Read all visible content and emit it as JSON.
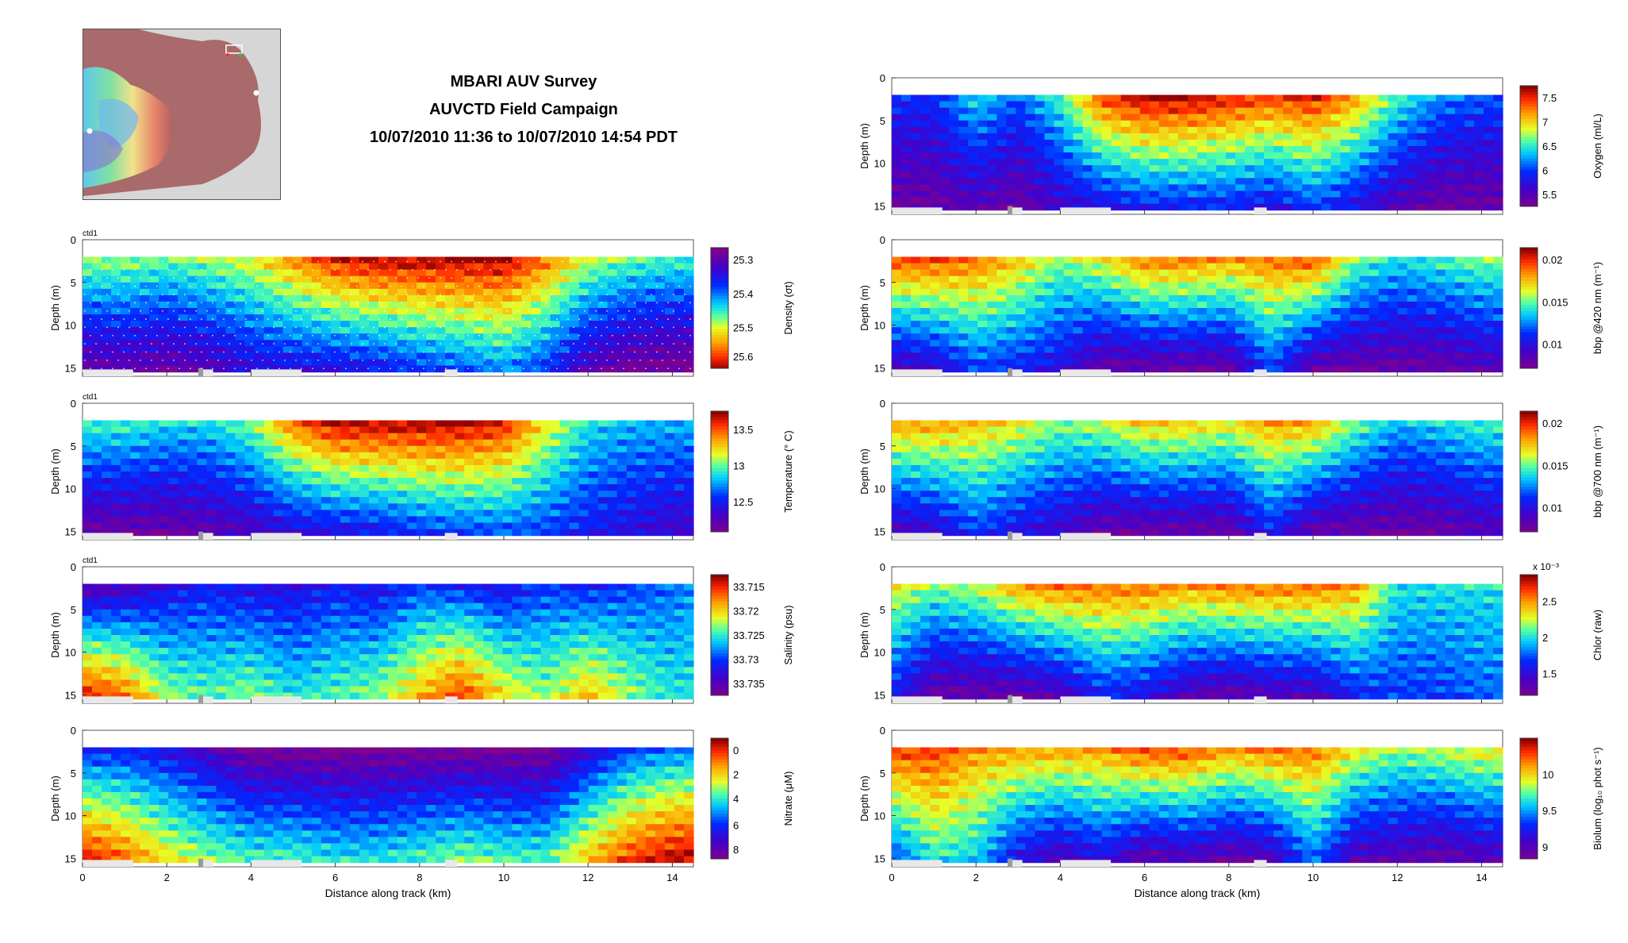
{
  "header": {
    "title": "MBARI AUV Survey",
    "subtitle": "AUVCTD Field Campaign",
    "time_range": "10/07/2010 11:36 to 10/07/2010 14:54 PDT"
  },
  "inset_map": {
    "icon": "bathymetry-map-icon"
  },
  "colors": {
    "ground": "#e8e8e8",
    "plot_border": "#555555",
    "grid_dots": "#ffffff"
  },
  "chart_data": [
    {
      "type": "heatmap",
      "panel": "density",
      "col": "left",
      "row": 0,
      "xlabel": "",
      "ylabel": "Depth (m)",
      "ytick_labels": [
        "0",
        "5",
        "10",
        "15"
      ],
      "ylim": [
        0,
        16
      ],
      "xlim": [
        0,
        14.5
      ],
      "cbar_label": "Density (σt)",
      "cbar_ticks": [
        "25.3",
        "25.4",
        "25.5",
        "25.6"
      ],
      "cbar_positions": [
        0.1,
        0.38,
        0.66,
        0.9
      ],
      "reversed_cmap": true,
      "corner_label": "ctd1",
      "show_samples": true,
      "profile": {
        "x": [
          0,
          1,
          2,
          3,
          4,
          5,
          6,
          7,
          8,
          9,
          10,
          11,
          12,
          13,
          14,
          14.5
        ],
        "top": [
          0.38,
          0.38,
          0.42,
          0.38,
          0.32,
          0.18,
          0.05,
          0,
          0,
          0,
          0,
          0.15,
          0.35,
          0.42,
          0.45,
          0.45
        ],
        "bottom": [
          0.95,
          0.92,
          0.95,
          0.9,
          0.82,
          0.8,
          0.8,
          0.78,
          0.72,
          0.68,
          0.62,
          0.72,
          0.9,
          0.98,
          1,
          1
        ]
      }
    },
    {
      "type": "heatmap",
      "panel": "temperature",
      "col": "left",
      "row": 1,
      "xlabel": "",
      "ylabel": "Depth (m)",
      "ytick_labels": [
        "0",
        "5",
        "10",
        "15"
      ],
      "ylim": [
        0,
        16
      ],
      "xlim": [
        0,
        14.5
      ],
      "cbar_label": "Temperature (° C)",
      "cbar_ticks": [
        "13.5",
        "13",
        "12.5"
      ],
      "cbar_positions": [
        0.15,
        0.45,
        0.75
      ],
      "reversed_cmap": false,
      "corner_label": "ctd1",
      "show_samples": false,
      "profile": {
        "x": [
          0,
          1,
          2,
          3,
          4,
          5,
          6,
          7,
          8,
          9,
          10,
          11,
          12,
          13,
          14,
          14.5
        ],
        "top": [
          0.55,
          0.55,
          0.5,
          0.5,
          0.6,
          0.85,
          1,
          1,
          1,
          1,
          0.95,
          0.7,
          0.5,
          0.45,
          0.45,
          0.45
        ],
        "bottom": [
          0.05,
          0.05,
          0.05,
          0.08,
          0.12,
          0.18,
          0.2,
          0.22,
          0.28,
          0.3,
          0.32,
          0.3,
          0.25,
          0.2,
          0.15,
          0.15
        ]
      }
    },
    {
      "type": "heatmap",
      "panel": "salinity",
      "col": "left",
      "row": 2,
      "xlabel": "",
      "ylabel": "Depth (m)",
      "ytick_labels": [
        "0",
        "5",
        "10",
        "15"
      ],
      "ylim": [
        0,
        16
      ],
      "xlim": [
        0,
        14.5
      ],
      "cbar_label": "Salinity (psu)",
      "cbar_ticks": [
        "33.715",
        "33.72",
        "33.725",
        "33.73",
        "33.735"
      ],
      "cbar_positions": [
        0.1,
        0.3,
        0.5,
        0.7,
        0.9
      ],
      "reversed_cmap": false,
      "corner_label": "ctd1",
      "show_samples": false,
      "profile": {
        "x": [
          0,
          1,
          2,
          3,
          4,
          5,
          6,
          7,
          8,
          9,
          10,
          11,
          12,
          13,
          14,
          14.5
        ],
        "top": [
          0.05,
          0.1,
          0.2,
          0.25,
          0.2,
          0.2,
          0.25,
          0.2,
          0.3,
          0.25,
          0.2,
          0.3,
          0.25,
          0.3,
          0.35,
          0.4
        ],
        "bottom": [
          0.95,
          0.85,
          0.6,
          0.55,
          0.6,
          0.5,
          0.55,
          0.6,
          0.75,
          0.9,
          0.7,
          0.6,
          0.75,
          0.6,
          0.5,
          0.5
        ]
      }
    },
    {
      "type": "heatmap",
      "panel": "nitrate",
      "col": "left",
      "row": 3,
      "xlabel": "Distance along track (km)",
      "ylabel": "Depth (m)",
      "ytick_labels": [
        "0",
        "5",
        "10",
        "15"
      ],
      "ylim": [
        0,
        16
      ],
      "xlim": [
        0,
        14.5
      ],
      "cbar_label": "Nitrate (μM)",
      "cbar_ticks": [
        "0",
        "2",
        "4",
        "6",
        "8"
      ],
      "cbar_positions": [
        0.1,
        0.3,
        0.5,
        0.72,
        0.92
      ],
      "reversed_cmap": false,
      "corner_label": "",
      "show_samples": false,
      "profile": {
        "x": [
          0,
          1,
          2,
          3,
          4,
          5,
          6,
          7,
          8,
          9,
          10,
          11,
          12,
          13,
          14,
          14.5
        ],
        "top": [
          0.25,
          0.25,
          0.2,
          0.12,
          0,
          0,
          0,
          0,
          0,
          0,
          0,
          0,
          0.15,
          0.3,
          0.35,
          0.35
        ],
        "bottom": [
          0.95,
          0.85,
          0.7,
          0.6,
          0.55,
          0.55,
          0.5,
          0.5,
          0.55,
          0.6,
          0.55,
          0.55,
          0.75,
          0.9,
          0.98,
          1
        ]
      }
    },
    {
      "type": "heatmap",
      "panel": "oxygen",
      "col": "right",
      "row": 0,
      "xlabel": "",
      "ylabel": "Depth (m)",
      "ytick_labels": [
        "0",
        "5",
        "10",
        "15"
      ],
      "ylim": [
        0,
        16
      ],
      "xlim": [
        0,
        14.5
      ],
      "cbar_label": "Oxygen (ml/L)",
      "cbar_ticks": [
        "7.5",
        "7",
        "6.5",
        "6",
        "5.5"
      ],
      "cbar_positions": [
        0.1,
        0.3,
        0.5,
        0.7,
        0.9
      ],
      "reversed_cmap": false,
      "corner_label": "",
      "show_samples": false,
      "profile": {
        "x": [
          0,
          1,
          2,
          3,
          4,
          5,
          6,
          7,
          8,
          9,
          10,
          11,
          12,
          13,
          14,
          14.5
        ],
        "top": [
          0.3,
          0.3,
          0.5,
          0.35,
          0.55,
          0.9,
          1,
          1,
          0.95,
          0.9,
          0.95,
          0.8,
          0.55,
          0.4,
          0.35,
          0.35
        ],
        "bottom": [
          0.05,
          0.05,
          0.1,
          0.05,
          0.15,
          0.2,
          0.25,
          0.25,
          0.25,
          0.2,
          0.3,
          0.2,
          0.1,
          0.05,
          0.05,
          0.05
        ]
      }
    },
    {
      "type": "heatmap",
      "panel": "bbp420",
      "col": "right",
      "row": 1,
      "xlabel": "",
      "ylabel": "",
      "ytick_labels": [
        "0",
        "5",
        "10",
        "15"
      ],
      "ylim": [
        0,
        16
      ],
      "xlim": [
        0,
        14.5
      ],
      "cbar_label": "bbp @420 nm (m⁻¹)",
      "cbar_ticks": [
        "0.02",
        "0.015",
        "0.01"
      ],
      "cbar_positions": [
        0.1,
        0.45,
        0.8
      ],
      "reversed_cmap": false,
      "corner_label": "",
      "show_samples": false,
      "profile": {
        "x": [
          0,
          1,
          2,
          3,
          4,
          5,
          6,
          7,
          8,
          9,
          10,
          11,
          12,
          13,
          14,
          14.5
        ],
        "top": [
          0.9,
          0.9,
          0.85,
          0.75,
          0.6,
          0.7,
          0.85,
          0.85,
          0.8,
          0.85,
          0.9,
          0.6,
          0.5,
          0.55,
          0.6,
          0.6
        ],
        "bottom": [
          0.1,
          0.15,
          0.3,
          0.25,
          0.2,
          0.05,
          0.05,
          0.05,
          0.05,
          0.3,
          0.05,
          0.05,
          0.05,
          0.05,
          0.1,
          0.1
        ]
      }
    },
    {
      "type": "heatmap",
      "panel": "bbp700",
      "col": "right",
      "row": 2,
      "xlabel": "",
      "ylabel": "",
      "ytick_labels": [
        "0",
        "5",
        "10",
        "15"
      ],
      "ylim": [
        0,
        16
      ],
      "xlim": [
        0,
        14.5
      ],
      "cbar_label": "bbp @700 nm (m⁻¹)",
      "cbar_ticks": [
        "0.02",
        "0.015",
        "0.01"
      ],
      "cbar_positions": [
        0.1,
        0.45,
        0.8
      ],
      "reversed_cmap": false,
      "corner_label": "",
      "show_samples": false,
      "profile": {
        "x": [
          0,
          1,
          2,
          3,
          4,
          5,
          6,
          7,
          8,
          9,
          10,
          11,
          12,
          13,
          14,
          14.5
        ],
        "top": [
          0.8,
          0.8,
          0.75,
          0.7,
          0.6,
          0.65,
          0.75,
          0.75,
          0.7,
          0.8,
          0.8,
          0.6,
          0.45,
          0.5,
          0.55,
          0.55
        ],
        "bottom": [
          0.1,
          0.15,
          0.3,
          0.2,
          0.15,
          0.05,
          0.05,
          0.05,
          0.05,
          0.25,
          0.05,
          0.05,
          0.05,
          0.05,
          0.1,
          0.1
        ]
      }
    },
    {
      "type": "heatmap",
      "panel": "chlor",
      "col": "right",
      "row": 3,
      "xlabel": "",
      "ylabel": "",
      "ytick_labels": [
        "0",
        "5",
        "10",
        "15"
      ],
      "ylim": [
        0,
        16
      ],
      "xlim": [
        0,
        14.5
      ],
      "cbar_label": "Chlor (raw)",
      "cbar_ticks": [
        "2.5",
        "2",
        "1.5"
      ],
      "cbar_positions": [
        0.22,
        0.52,
        0.82
      ],
      "cbar_exponent": "x 10⁻³",
      "reversed_cmap": false,
      "corner_label": "",
      "show_samples": false,
      "profile": {
        "x": [
          0,
          1,
          2,
          3,
          4,
          5,
          6,
          7,
          8,
          9,
          10,
          11,
          12,
          13,
          14,
          14.5
        ],
        "top": [
          0.7,
          0.6,
          0.65,
          0.8,
          0.85,
          0.85,
          0.85,
          0.8,
          0.85,
          0.85,
          0.85,
          0.8,
          0.5,
          0.5,
          0.5,
          0.5
        ],
        "bottom": [
          0.25,
          0.05,
          0.05,
          0.05,
          0.1,
          0.25,
          0.2,
          0.1,
          0.05,
          0.1,
          0.1,
          0.25,
          0.3,
          0.3,
          0.35,
          0.35
        ]
      }
    },
    {
      "type": "heatmap",
      "panel": "biolum",
      "col": "right",
      "row": 4,
      "xlabel": "Distance along track (km)",
      "ylabel": "",
      "ytick_labels": [
        "0",
        "5",
        "10",
        "15"
      ],
      "ylim": [
        0,
        16
      ],
      "xlim": [
        0,
        14.5
      ],
      "cbar_label": "Biolum (log₁₀ phot s⁻¹)",
      "cbar_ticks": [
        "10",
        "9.5",
        "9"
      ],
      "cbar_positions": [
        0.3,
        0.6,
        0.9
      ],
      "reversed_cmap": false,
      "corner_label": "",
      "show_samples": false,
      "profile": {
        "x": [
          0,
          1,
          2,
          3,
          4,
          5,
          6,
          7,
          8,
          9,
          10,
          11,
          12,
          13,
          14,
          14.5
        ],
        "top": [
          0.9,
          0.9,
          0.8,
          0.8,
          0.8,
          0.8,
          0.9,
          0.9,
          0.8,
          0.85,
          0.85,
          0.7,
          0.6,
          0.65,
          0.7,
          0.7
        ],
        "bottom": [
          0.3,
          0.5,
          0.45,
          0.2,
          0.1,
          0.2,
          0.05,
          0.1,
          0.05,
          0.1,
          0.35,
          0.1,
          0.1,
          0.05,
          0.1,
          0.1
        ]
      }
    }
  ],
  "axes": {
    "depth_label": "Depth (m)",
    "distance_label": "Distance along track (km)",
    "x_ticks": [
      "0",
      "2",
      "4",
      "6",
      "8",
      "10",
      "12",
      "14"
    ]
  }
}
